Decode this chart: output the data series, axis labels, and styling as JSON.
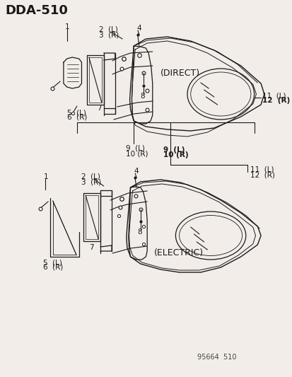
{
  "title": "DDA−510",
  "bg_color": "#f2ede8",
  "line_color": "#1a1a1a",
  "text_color": "#1a1a1a",
  "watermark": "95664  510",
  "diagram1_label": "(DIRECT)",
  "diagram2_label": "(ELECTRIC)"
}
